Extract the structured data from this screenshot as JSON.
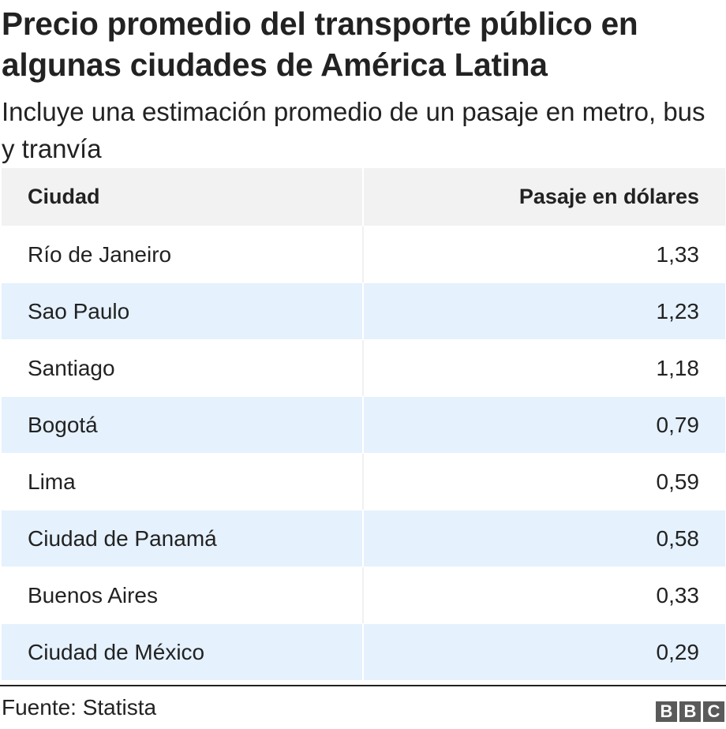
{
  "chart_data": {
    "type": "table",
    "title": "Precio promedio del transporte público en algunas ciudades de América Latina",
    "subtitle": "Incluye una estimación promedio de un pasaje en metro, bus y tranvía",
    "columns": [
      "Ciudad",
      "Pasaje en dólares"
    ],
    "rows": [
      {
        "city": "Río de Janeiro",
        "value": "1,33"
      },
      {
        "city": "Sao Paulo",
        "value": "1,23"
      },
      {
        "city": "Santiago",
        "value": "1,18"
      },
      {
        "city": "Bogotá",
        "value": "0,79"
      },
      {
        "city": "Lima",
        "value": "0,59"
      },
      {
        "city": "Ciudad de Panamá",
        "value": "0,58"
      },
      {
        "city": "Buenos Aires",
        "value": "0,33"
      },
      {
        "city": "Ciudad de México",
        "value": "0,29"
      }
    ],
    "source": "Fuente: Statista"
  },
  "logo": {
    "letters": [
      "B",
      "B",
      "C"
    ]
  },
  "colors": {
    "text": "#222222",
    "header_bg": "#f2f2f2",
    "stripe_bg": "#e5f1fd",
    "logo_bg": "#5a5a5a"
  }
}
